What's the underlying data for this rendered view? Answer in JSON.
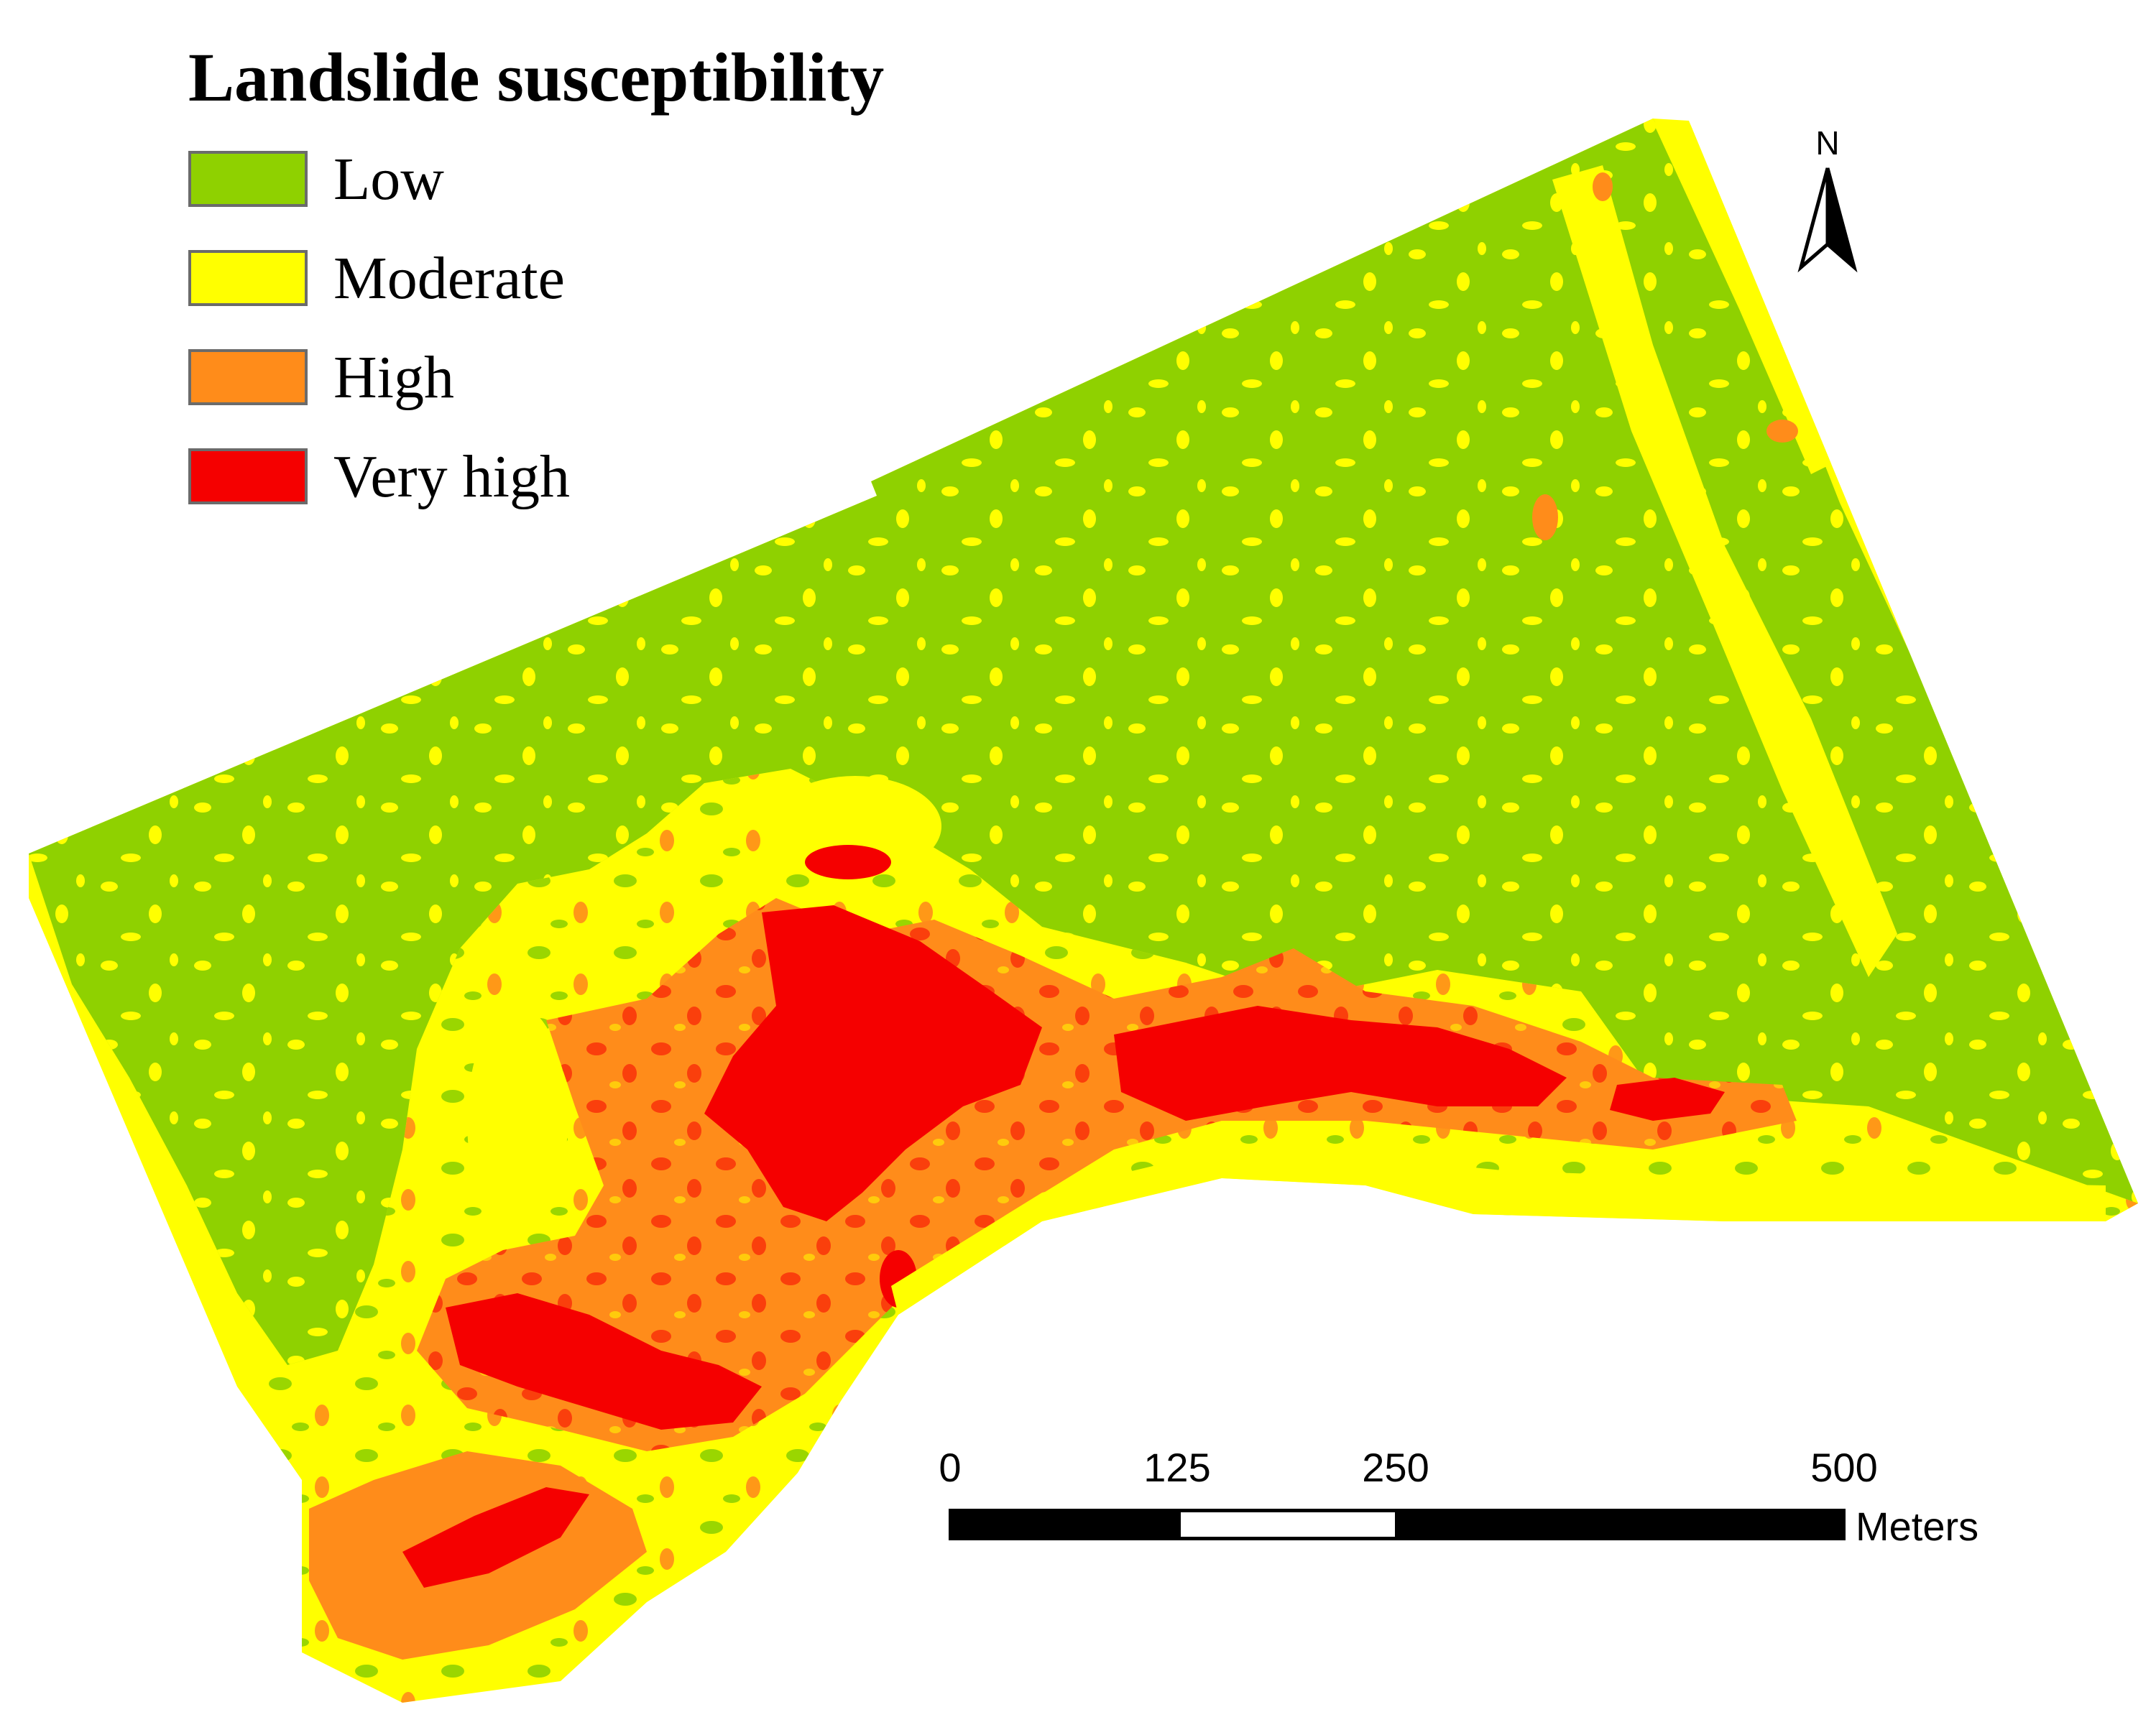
{
  "legend": {
    "title": "Landslide susceptibility",
    "items": [
      {
        "label": "Low",
        "color": "#8fd100"
      },
      {
        "label": "Moderate",
        "color": "#ffff00"
      },
      {
        "label": "High",
        "color": "#ff8c1a"
      },
      {
        "label": "Very high",
        "color": "#f50000"
      }
    ]
  },
  "north_arrow": {
    "label": "N"
  },
  "scale_bar": {
    "ticks": [
      "0",
      "125",
      "250",
      "500"
    ],
    "units": "Meters"
  }
}
